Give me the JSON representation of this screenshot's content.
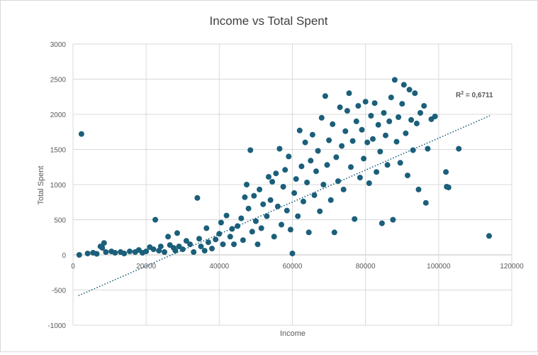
{
  "chart_data": {
    "type": "scatter",
    "title": "Income vs Total Spent",
    "xlabel": "Income",
    "ylabel": "Total Spent",
    "xlim": [
      0,
      120000
    ],
    "ylim": [
      -1000,
      3000
    ],
    "x_ticks": [
      0,
      20000,
      40000,
      60000,
      80000,
      100000,
      120000
    ],
    "y_ticks": [
      -1000,
      -500,
      0,
      500,
      1000,
      1500,
      2000,
      2500,
      3000
    ],
    "x_tick_labels": [
      "0",
      "20000",
      "40000",
      "60000",
      "80000",
      "100000",
      "120000"
    ],
    "y_tick_labels": [
      "-1000",
      "-500",
      "0",
      "500",
      "1000",
      "1500",
      "2000",
      "2500",
      "3000"
    ],
    "grid": true,
    "marker_color": "#1b5f7a",
    "trendline": {
      "type": "linear",
      "x": [
        1500,
        114000
      ],
      "y": [
        -580,
        1980
      ],
      "color": "#1b5f7a",
      "style": "dotted",
      "annotation": "R² = 0,6711"
    },
    "points": [
      [
        1700,
        0
      ],
      [
        2300,
        1720
      ],
      [
        4000,
        20
      ],
      [
        5500,
        30
      ],
      [
        6500,
        15
      ],
      [
        7500,
        120
      ],
      [
        8000,
        100
      ],
      [
        8500,
        170
      ],
      [
        9000,
        40
      ],
      [
        10500,
        50
      ],
      [
        11500,
        30
      ],
      [
        13000,
        40
      ],
      [
        14000,
        20
      ],
      [
        15500,
        50
      ],
      [
        17000,
        40
      ],
      [
        18000,
        70
      ],
      [
        19000,
        30
      ],
      [
        20000,
        50
      ],
      [
        21000,
        110
      ],
      [
        22000,
        80
      ],
      [
        22500,
        500
      ],
      [
        23500,
        60
      ],
      [
        24000,
        120
      ],
      [
        25000,
        40
      ],
      [
        26000,
        260
      ],
      [
        26500,
        140
      ],
      [
        27500,
        100
      ],
      [
        28000,
        60
      ],
      [
        28500,
        310
      ],
      [
        29000,
        120
      ],
      [
        30000,
        80
      ],
      [
        31000,
        200
      ],
      [
        32000,
        150
      ],
      [
        33000,
        40
      ],
      [
        34000,
        810
      ],
      [
        34500,
        230
      ],
      [
        35000,
        120
      ],
      [
        36000,
        60
      ],
      [
        36500,
        380
      ],
      [
        37000,
        180
      ],
      [
        38000,
        90
      ],
      [
        39000,
        220
      ],
      [
        40000,
        300
      ],
      [
        40500,
        460
      ],
      [
        41000,
        150
      ],
      [
        42000,
        560
      ],
      [
        43000,
        260
      ],
      [
        43500,
        370
      ],
      [
        44000,
        150
      ],
      [
        45000,
        410
      ],
      [
        46000,
        520
      ],
      [
        46500,
        210
      ],
      [
        47000,
        820
      ],
      [
        47500,
        1000
      ],
      [
        48000,
        660
      ],
      [
        48500,
        1490
      ],
      [
        49000,
        330
      ],
      [
        49500,
        840
      ],
      [
        50000,
        480
      ],
      [
        50500,
        150
      ],
      [
        51000,
        930
      ],
      [
        51500,
        380
      ],
      [
        52000,
        720
      ],
      [
        53000,
        550
      ],
      [
        53500,
        1110
      ],
      [
        54000,
        780
      ],
      [
        54500,
        1040
      ],
      [
        55000,
        260
      ],
      [
        55500,
        1160
      ],
      [
        56000,
        690
      ],
      [
        56500,
        1510
      ],
      [
        57000,
        430
      ],
      [
        57500,
        970
      ],
      [
        58000,
        1210
      ],
      [
        58500,
        630
      ],
      [
        59000,
        1400
      ],
      [
        59500,
        360
      ],
      [
        60000,
        20
      ],
      [
        60500,
        880
      ],
      [
        61000,
        1080
      ],
      [
        61500,
        550
      ],
      [
        62000,
        1770
      ],
      [
        62500,
        1260
      ],
      [
        63000,
        760
      ],
      [
        63500,
        1600
      ],
      [
        64000,
        1030
      ],
      [
        64500,
        320
      ],
      [
        65000,
        1340
      ],
      [
        65500,
        1710
      ],
      [
        66000,
        850
      ],
      [
        66500,
        1190
      ],
      [
        67000,
        1480
      ],
      [
        67500,
        620
      ],
      [
        68000,
        1950
      ],
      [
        68500,
        1000
      ],
      [
        69000,
        2260
      ],
      [
        69500,
        1280
      ],
      [
        70000,
        1630
      ],
      [
        70500,
        780
      ],
      [
        71000,
        1860
      ],
      [
        71500,
        320
      ],
      [
        72000,
        1390
      ],
      [
        72500,
        1050
      ],
      [
        73000,
        2100
      ],
      [
        73500,
        1550
      ],
      [
        74000,
        930
      ],
      [
        74500,
        1760
      ],
      [
        75000,
        2050
      ],
      [
        75500,
        2300
      ],
      [
        76000,
        1250
      ],
      [
        76500,
        1620
      ],
      [
        77000,
        510
      ],
      [
        77500,
        1900
      ],
      [
        78000,
        2120
      ],
      [
        78500,
        1100
      ],
      [
        79000,
        1780
      ],
      [
        79500,
        1370
      ],
      [
        80000,
        2180
      ],
      [
        80500,
        1600
      ],
      [
        81000,
        1020
      ],
      [
        81500,
        1980
      ],
      [
        82000,
        1650
      ],
      [
        82500,
        2160
      ],
      [
        83000,
        1180
      ],
      [
        83500,
        1850
      ],
      [
        84000,
        1470
      ],
      [
        84500,
        450
      ],
      [
        85000,
        2020
      ],
      [
        85500,
        1700
      ],
      [
        86000,
        1280
      ],
      [
        86500,
        1900
      ],
      [
        87000,
        2240
      ],
      [
        87500,
        500
      ],
      [
        88000,
        2490
      ],
      [
        88500,
        1610
      ],
      [
        89000,
        1960
      ],
      [
        89500,
        1310
      ],
      [
        90000,
        2150
      ],
      [
        90500,
        2420
      ],
      [
        91000,
        1730
      ],
      [
        91500,
        1130
      ],
      [
        92000,
        2350
      ],
      [
        92500,
        1920
      ],
      [
        93000,
        1490
      ],
      [
        93500,
        2300
      ],
      [
        94000,
        1870
      ],
      [
        94500,
        930
      ],
      [
        95000,
        2020
      ],
      [
        96000,
        2120
      ],
      [
        96500,
        740
      ],
      [
        97000,
        1510
      ],
      [
        98000,
        1930
      ],
      [
        99000,
        1970
      ],
      [
        102000,
        1180
      ],
      [
        102200,
        970
      ],
      [
        102700,
        960
      ],
      [
        105500,
        1510
      ],
      [
        113800,
        270
      ]
    ]
  }
}
